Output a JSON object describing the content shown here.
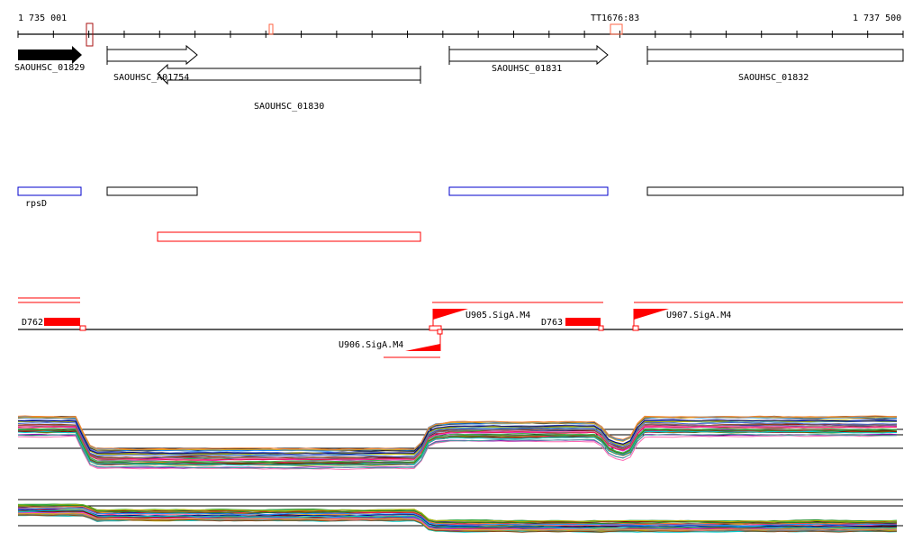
{
  "ruler": {
    "start_label": "1 735 001",
    "end_label": "1 737 500",
    "terminator_label": "TT1676:83"
  },
  "genes": [
    {
      "name": "SAOUHSC_01829",
      "strand": "+",
      "filled": true
    },
    {
      "name": "SAOUHSC_A01754",
      "strand": "+",
      "filled": false
    },
    {
      "name": "SAOUHSC_01830",
      "strand": "-",
      "filled": false
    },
    {
      "name": "SAOUHSC_01831",
      "strand": "+",
      "filled": false
    },
    {
      "name": "SAOUHSC_01832",
      "strand": "+",
      "filled": false
    }
  ],
  "operons": {
    "rpsD_label": "rpsD"
  },
  "regulatory": {
    "d762": "D762",
    "d763": "D763",
    "u905": "U905.SigA.M4",
    "u906": "U906.SigA.M4",
    "u907": "U907.SigA.M4"
  },
  "colors": {
    "feature_red": "#ff0000",
    "operon_blue": "#0000cc",
    "terminator": "#ff6644",
    "marker_dark_red": "#aa1111",
    "expression_palette": [
      "#e6194b",
      "#3cb44b",
      "#4363d8",
      "#f58231",
      "#911eb4",
      "#46a0a0",
      "#f032e6",
      "#bcb400",
      "#8b4513",
      "#808000",
      "#000080",
      "#808080",
      "#1e90ff",
      "#ff69b4",
      "#228b22",
      "#daa520",
      "#8b0000",
      "#00ced1"
    ]
  }
}
